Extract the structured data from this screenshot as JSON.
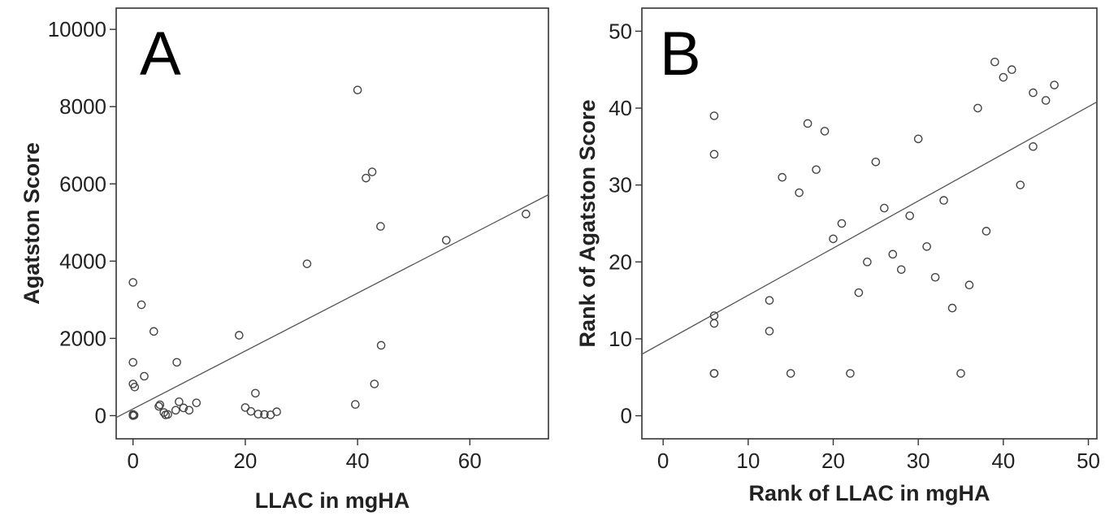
{
  "colors": {
    "frame": "#333333",
    "points": "#444444",
    "fit_line": "#555555",
    "text": "#222222"
  },
  "chart_data": [
    {
      "panel": "A",
      "type": "scatter",
      "xlabel": "LLAC in mgHA",
      "ylabel": "Agatston Score",
      "xlim": [
        -3,
        74
      ],
      "ylim": [
        -600,
        10550
      ],
      "xticks": [
        0,
        20,
        40,
        60
      ],
      "yticks": [
        0,
        2000,
        4000,
        6000,
        8000,
        10000
      ],
      "grid": false,
      "points": [
        [
          0,
          3450
        ],
        [
          0,
          1380
        ],
        [
          0,
          820
        ],
        [
          0.3,
          740
        ],
        [
          0,
          30
        ],
        [
          0,
          0
        ],
        [
          0.2,
          10
        ],
        [
          1.5,
          2870
        ],
        [
          2,
          1020
        ],
        [
          3.7,
          2180
        ],
        [
          7.8,
          1380
        ],
        [
          4.8,
          280
        ],
        [
          4.6,
          240
        ],
        [
          5.5,
          80
        ],
        [
          5.8,
          20
        ],
        [
          6.2,
          30
        ],
        [
          7.6,
          140
        ],
        [
          8.2,
          360
        ],
        [
          9,
          200
        ],
        [
          10,
          140
        ],
        [
          11.3,
          330
        ],
        [
          18.9,
          2080
        ],
        [
          20,
          210
        ],
        [
          21,
          110
        ],
        [
          21.8,
          580
        ],
        [
          22.3,
          40
        ],
        [
          23.4,
          30
        ],
        [
          24.5,
          20
        ],
        [
          25.6,
          100
        ],
        [
          31,
          3930
        ],
        [
          39.6,
          290
        ],
        [
          40,
          8430
        ],
        [
          41.5,
          6150
        ],
        [
          42.6,
          6310
        ],
        [
          43,
          820
        ],
        [
          44.2,
          1820
        ],
        [
          44.1,
          4900
        ],
        [
          55.8,
          4540
        ],
        [
          70,
          5220
        ]
      ],
      "fit_line": {
        "x": [
          -3,
          74
        ],
        "y": [
          -50,
          5720
        ]
      }
    },
    {
      "panel": "B",
      "type": "scatter",
      "xlabel": "Rank of LLAC in mgHA",
      "ylabel": "Rank of Agatston Score",
      "xlim": [
        -2.5,
        51
      ],
      "ylim": [
        -3,
        53
      ],
      "xticks": [
        0,
        10,
        20,
        30,
        40,
        50
      ],
      "yticks": [
        0,
        10,
        20,
        30,
        40,
        50
      ],
      "grid": false,
      "points": [
        [
          6,
          39
        ],
        [
          6,
          34
        ],
        [
          6,
          13
        ],
        [
          6,
          12
        ],
        [
          6,
          5.5
        ],
        [
          6,
          5.5
        ],
        [
          12.5,
          15
        ],
        [
          12.5,
          11
        ],
        [
          14,
          31
        ],
        [
          15,
          5.5
        ],
        [
          16,
          29
        ],
        [
          17,
          38
        ],
        [
          18,
          32
        ],
        [
          19,
          37
        ],
        [
          20,
          23
        ],
        [
          21,
          25
        ],
        [
          22,
          5.5
        ],
        [
          23,
          16
        ],
        [
          24,
          20
        ],
        [
          25,
          33
        ],
        [
          26,
          27
        ],
        [
          27,
          21
        ],
        [
          28,
          19
        ],
        [
          29,
          26
        ],
        [
          30,
          36
        ],
        [
          31,
          22
        ],
        [
          32,
          18
        ],
        [
          33,
          28
        ],
        [
          34,
          14
        ],
        [
          35,
          5.5
        ],
        [
          36,
          17
        ],
        [
          37,
          40
        ],
        [
          38,
          24
        ],
        [
          39,
          46
        ],
        [
          40,
          44
        ],
        [
          41,
          45
        ],
        [
          42,
          30
        ],
        [
          43.5,
          42
        ],
        [
          43.5,
          35
        ],
        [
          45,
          41
        ],
        [
          46,
          43
        ]
      ],
      "fit_line": {
        "x": [
          -2.5,
          51
        ],
        "y": [
          8,
          40.8
        ]
      }
    }
  ],
  "panels": [
    {
      "letter": "A",
      "xlabel": "LLAC in mgHA",
      "ylabel": "Agatston Score",
      "xtick_labels": [
        "0",
        "20",
        "40",
        "60"
      ],
      "ytick_labels": [
        "0",
        "2000",
        "4000",
        "6000",
        "8000",
        "10000"
      ]
    },
    {
      "letter": "B",
      "xlabel": "Rank of LLAC in mgHA",
      "ylabel": "Rank of Agatston Score",
      "xtick_labels": [
        "0",
        "10",
        "20",
        "30",
        "40",
        "50"
      ],
      "ytick_labels": [
        "0",
        "10",
        "20",
        "30",
        "40",
        "50"
      ]
    }
  ]
}
